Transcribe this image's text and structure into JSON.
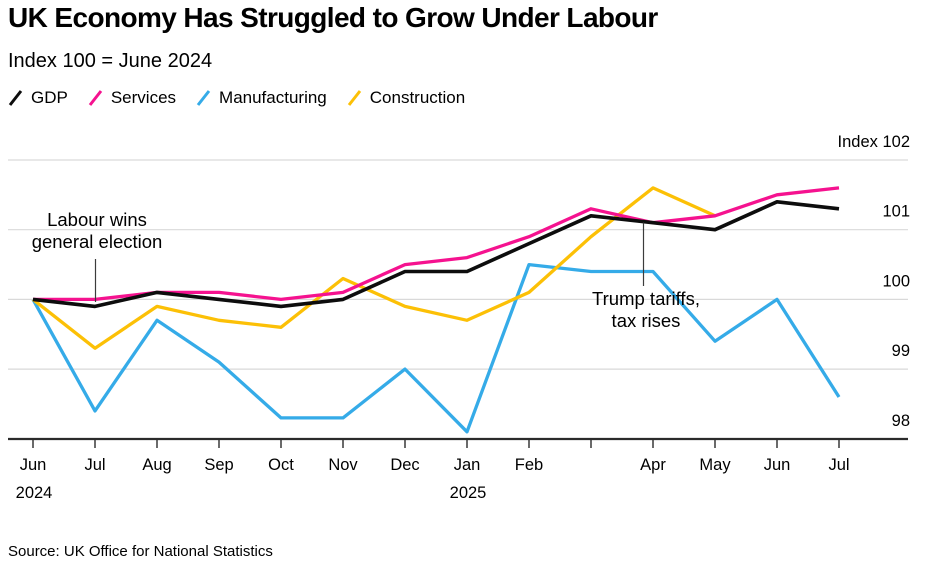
{
  "chart_data": {
    "type": "line",
    "title": "UK Economy Has Struggled to Grow Under Labour",
    "subtitle": "Index 100 = June 2024",
    "grid": "horizontal",
    "legend_position": "top",
    "y_axis": {
      "ticks": [
        102,
        101,
        100,
        99,
        98
      ],
      "tick_labels": [
        "Index 102",
        "101",
        "100",
        "99",
        "98"
      ],
      "range": [
        98,
        102
      ]
    },
    "x": [
      "Jun 2024",
      "Jul 2024",
      "Aug 2024",
      "Sep 2024",
      "Oct 2024",
      "Nov 2024",
      "Dec 2024",
      "Jan 2025",
      "Feb 2025",
      "Mar 2025",
      "Apr 2025",
      "May 2025",
      "Jun 2025",
      "Jul 2025"
    ],
    "x_tick_labels": [
      "Jun",
      "Jul",
      "Aug",
      "Sep",
      "Oct",
      "Nov",
      "Dec",
      "Jan",
      "Feb",
      "",
      "Apr",
      "May",
      "Jun",
      "Jul"
    ],
    "x_year_labels": [
      {
        "tick_index": 0,
        "label": "2024"
      },
      {
        "tick_index": 7,
        "label": "2025"
      }
    ],
    "series": [
      {
        "name": "GDP",
        "color": "#0d0d0d",
        "values": [
          100,
          99.9,
          100.1,
          100,
          99.9,
          100,
          100.4,
          100.4,
          100.8,
          101.2,
          101.1,
          101,
          101.4,
          101.3
        ]
      },
      {
        "name": "Services",
        "color": "#f5128f",
        "values": [
          100,
          100,
          100.1,
          100.1,
          100,
          100.1,
          100.5,
          100.6,
          100.9,
          101.3,
          101.1,
          101.2,
          101.5,
          101.6
        ]
      },
      {
        "name": "Manufacturing",
        "color": "#35abe8",
        "values": [
          100,
          98.4,
          99.7,
          99.1,
          98.3,
          98.3,
          99,
          98.1,
          100.5,
          100.4,
          100.4,
          99.4,
          100,
          98.6
        ]
      },
      {
        "name": "Construction",
        "color": "#fcc006",
        "values": [
          100,
          99.3,
          99.9,
          99.7,
          99.6,
          100.3,
          99.9,
          99.7,
          100.1,
          100.9,
          101.6,
          101.2,
          null,
          null
        ]
      }
    ],
    "annotations": [
      {
        "id": "labour",
        "line1": "Labour wins",
        "line2": "general election",
        "points_to": "Jul 2024"
      },
      {
        "id": "tariffs",
        "line1": "Trump tariffs,",
        "line2": "tax rises",
        "points_to": "Apr 2025"
      }
    ]
  },
  "colors": {
    "gridline": "#d9d9d9",
    "axis": "#2b2b2b",
    "annotation_line": "#3c3c3c"
  },
  "source": "Source: UK Office for National Statistics"
}
